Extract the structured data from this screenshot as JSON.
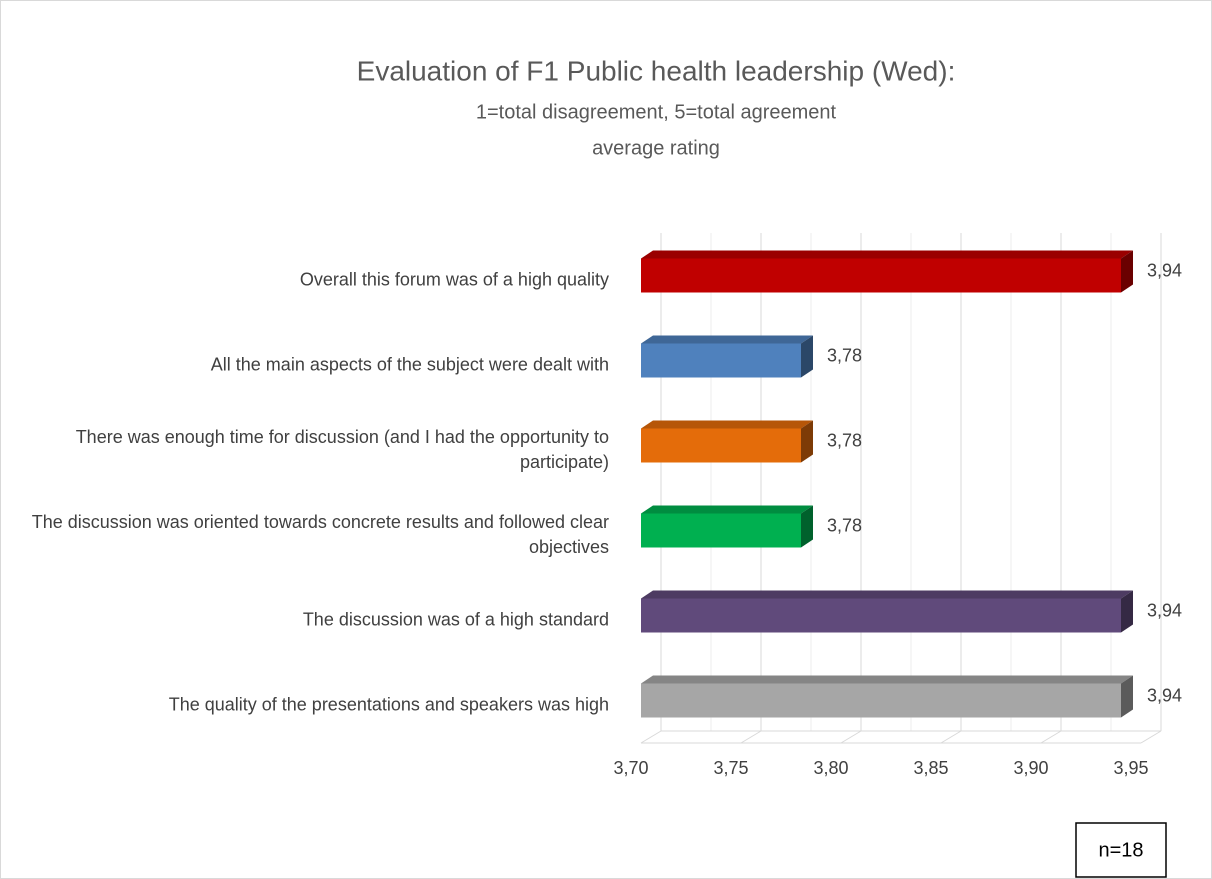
{
  "chart_data": {
    "type": "bar",
    "orientation": "horizontal",
    "3d": true,
    "title": "Evaluation of F1 Public health leadership (Wed):",
    "subtitle": [
      "1=total disagreement, 5=total agreement",
      "average rating"
    ],
    "categories": [
      "Overall this forum was of a high quality",
      "All the main aspects of the subject were dealt with",
      "There was enough time for discussion (and I had the opportunity to participate)",
      "The discussion was oriented towards concrete results and followed clear objectives",
      "The discussion was of a high standard",
      "The quality of the presentations and speakers was high"
    ],
    "values": [
      3.94,
      3.78,
      3.78,
      3.78,
      3.94,
      3.94
    ],
    "value_labels": [
      "3,94",
      "3,78",
      "3,78",
      "3,78",
      "3,94",
      "3,94"
    ],
    "colors": [
      "#c00000",
      "#4f81bd",
      "#e46c0a",
      "#00b050",
      "#604a7b",
      "#a6a6a6"
    ],
    "xlim": [
      3.7,
      3.95
    ],
    "xticks": [
      {
        "value": 3.7,
        "label": "3,70"
      },
      {
        "value": 3.75,
        "label": "3,75"
      },
      {
        "value": 3.8,
        "label": "3,80"
      },
      {
        "value": 3.85,
        "label": "3,85"
      },
      {
        "value": 3.9,
        "label": "3,90"
      },
      {
        "value": 3.95,
        "label": "3,95"
      }
    ],
    "grid": true,
    "annotation": "n=18"
  }
}
